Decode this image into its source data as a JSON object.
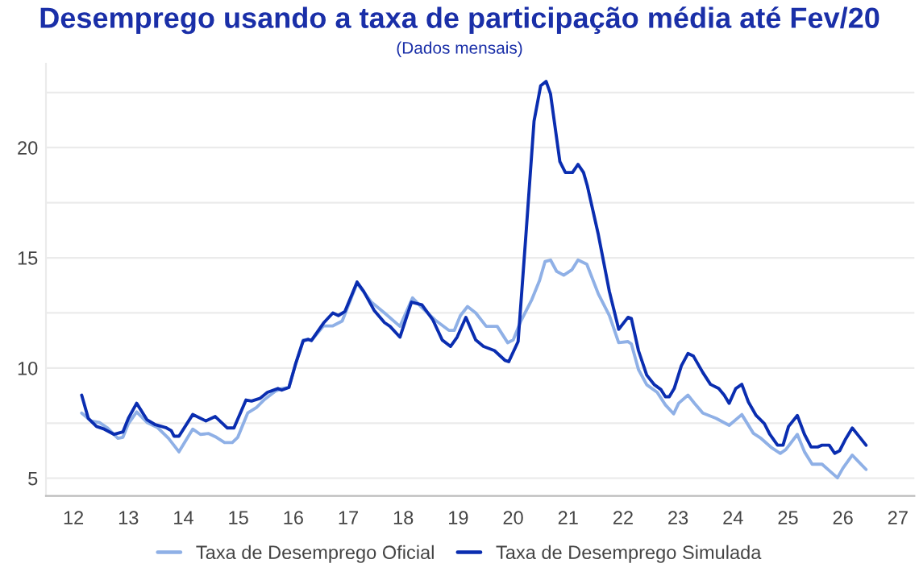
{
  "chart_data": {
    "type": "line",
    "title": "Desemprego usando a taxa de participação média até Fev/20",
    "subtitle": "(Dados mensais)",
    "xlim": [
      11.5,
      27.3
    ],
    "xticks": [
      12,
      13,
      14,
      15,
      16,
      17,
      18,
      19,
      20,
      21,
      22,
      23,
      24,
      25,
      26,
      27
    ],
    "ylim": [
      4.2,
      23.8
    ],
    "yticks": [
      5,
      {
        "value": 7.5,
        "label": null
      },
      10,
      {
        "value": 12.5,
        "label": null
      },
      15,
      {
        "value": 17.5,
        "label": null
      },
      20,
      {
        "value": 22.5,
        "label": null
      }
    ],
    "grid": "y",
    "legend": "bottom",
    "line_style": "solid",
    "series": [
      {
        "name": "Taxa de Desemprego Oficial",
        "color": "#8fb0e6",
        "x": [
          12.15,
          12.32,
          12.47,
          12.61,
          12.81,
          12.9,
          13.0,
          13.15,
          13.34,
          13.53,
          13.73,
          13.92,
          14.17,
          14.31,
          14.46,
          14.6,
          14.75,
          14.89,
          14.99,
          15.17,
          15.33,
          15.48,
          15.67,
          15.79,
          15.92,
          16.04,
          16.18,
          16.27,
          16.33,
          16.55,
          16.72,
          16.89,
          17.16,
          17.42,
          17.66,
          17.94,
          18.17,
          18.34,
          18.58,
          18.83,
          18.93,
          19.04,
          19.17,
          19.32,
          19.51,
          19.71,
          19.9,
          20.0,
          20.14,
          20.34,
          20.48,
          20.58,
          20.68,
          20.79,
          20.92,
          21.07,
          21.18,
          21.34,
          21.55,
          21.75,
          21.92,
          22.09,
          22.15,
          22.28,
          22.43,
          22.62,
          22.77,
          22.92,
          23.01,
          23.18,
          23.3,
          23.45,
          23.69,
          23.93,
          24.16,
          24.37,
          24.51,
          24.71,
          24.86,
          24.96,
          25.17,
          25.3,
          25.44,
          25.62,
          25.75,
          25.9,
          26.0,
          26.17,
          26.28,
          26.42
        ],
        "values": [
          7.96,
          7.6,
          7.53,
          7.3,
          6.81,
          6.86,
          7.48,
          8.01,
          7.53,
          7.3,
          6.81,
          6.2,
          7.23,
          6.99,
          7.03,
          6.86,
          6.62,
          6.62,
          6.86,
          7.96,
          8.21,
          8.58,
          8.95,
          9.07,
          9.12,
          10.17,
          11.27,
          11.3,
          11.25,
          11.91,
          11.91,
          12.13,
          13.85,
          12.99,
          12.5,
          11.89,
          13.18,
          12.74,
          12.18,
          11.71,
          11.71,
          12.38,
          12.79,
          12.5,
          11.89,
          11.89,
          11.15,
          11.27,
          12.13,
          13.11,
          13.97,
          14.83,
          14.9,
          14.39,
          14.21,
          14.46,
          14.9,
          14.71,
          13.36,
          12.38,
          11.15,
          11.2,
          11.1,
          9.93,
          9.24,
          8.9,
          8.33,
          7.92,
          8.4,
          8.77,
          8.4,
          7.96,
          7.72,
          7.4,
          7.89,
          7.04,
          6.81,
          6.37,
          6.13,
          6.3,
          6.99,
          6.2,
          5.64,
          5.64,
          5.35,
          5.02,
          5.46,
          6.05,
          5.76,
          5.4
        ]
      },
      {
        "name": "Taxa de Desemprego Simulada",
        "color": "#0a2db0",
        "x": [
          12.15,
          12.27,
          12.42,
          12.56,
          12.74,
          12.9,
          13.0,
          13.15,
          13.34,
          13.49,
          13.68,
          13.78,
          13.83,
          13.92,
          14.17,
          14.41,
          14.58,
          14.8,
          14.92,
          15.14,
          15.24,
          15.4,
          15.53,
          15.72,
          15.79,
          15.92,
          16.04,
          16.18,
          16.27,
          16.33,
          16.55,
          16.72,
          16.82,
          16.94,
          17.16,
          17.28,
          17.47,
          17.66,
          17.76,
          17.94,
          18.15,
          18.34,
          18.54,
          18.71,
          18.86,
          18.98,
          19.14,
          19.32,
          19.46,
          19.66,
          19.85,
          19.92,
          20.09,
          20.24,
          20.38,
          20.5,
          20.6,
          20.68,
          20.85,
          20.95,
          21.08,
          21.18,
          21.28,
          21.35,
          21.55,
          21.75,
          21.92,
          22.09,
          22.15,
          22.28,
          22.43,
          22.57,
          22.69,
          22.77,
          22.84,
          22.93,
          23.06,
          23.18,
          23.28,
          23.45,
          23.59,
          23.74,
          23.84,
          23.93,
          24.05,
          24.16,
          24.28,
          24.42,
          24.57,
          24.67,
          24.81,
          24.91,
          25.01,
          25.17,
          25.3,
          25.42,
          25.54,
          25.62,
          25.75,
          25.85,
          25.94,
          26.04,
          26.17,
          26.28,
          26.42
        ],
        "values": [
          8.77,
          7.72,
          7.35,
          7.23,
          6.99,
          7.1,
          7.72,
          8.4,
          7.65,
          7.43,
          7.3,
          7.16,
          6.91,
          6.91,
          7.89,
          7.6,
          7.8,
          7.28,
          7.28,
          8.55,
          8.5,
          8.63,
          8.9,
          9.07,
          9.0,
          9.12,
          10.17,
          11.23,
          11.3,
          11.25,
          12.04,
          12.5,
          12.38,
          12.57,
          13.9,
          13.48,
          12.62,
          12.06,
          11.89,
          11.4,
          12.99,
          12.87,
          12.18,
          11.27,
          10.98,
          11.4,
          12.3,
          11.27,
          10.98,
          10.79,
          10.35,
          10.29,
          11.2,
          16.3,
          21.2,
          22.8,
          23.0,
          22.43,
          19.36,
          18.87,
          18.87,
          19.24,
          18.87,
          18.26,
          16.05,
          13.48,
          11.76,
          12.3,
          12.25,
          10.79,
          9.68,
          9.24,
          9.02,
          8.7,
          8.7,
          9.07,
          10.1,
          10.66,
          10.54,
          9.8,
          9.26,
          9.07,
          8.77,
          8.4,
          9.07,
          9.26,
          8.46,
          7.85,
          7.48,
          6.99,
          6.5,
          6.5,
          7.35,
          7.85,
          6.99,
          6.42,
          6.42,
          6.5,
          6.5,
          6.13,
          6.25,
          6.74,
          7.28,
          6.94,
          6.5
        ]
      }
    ]
  }
}
